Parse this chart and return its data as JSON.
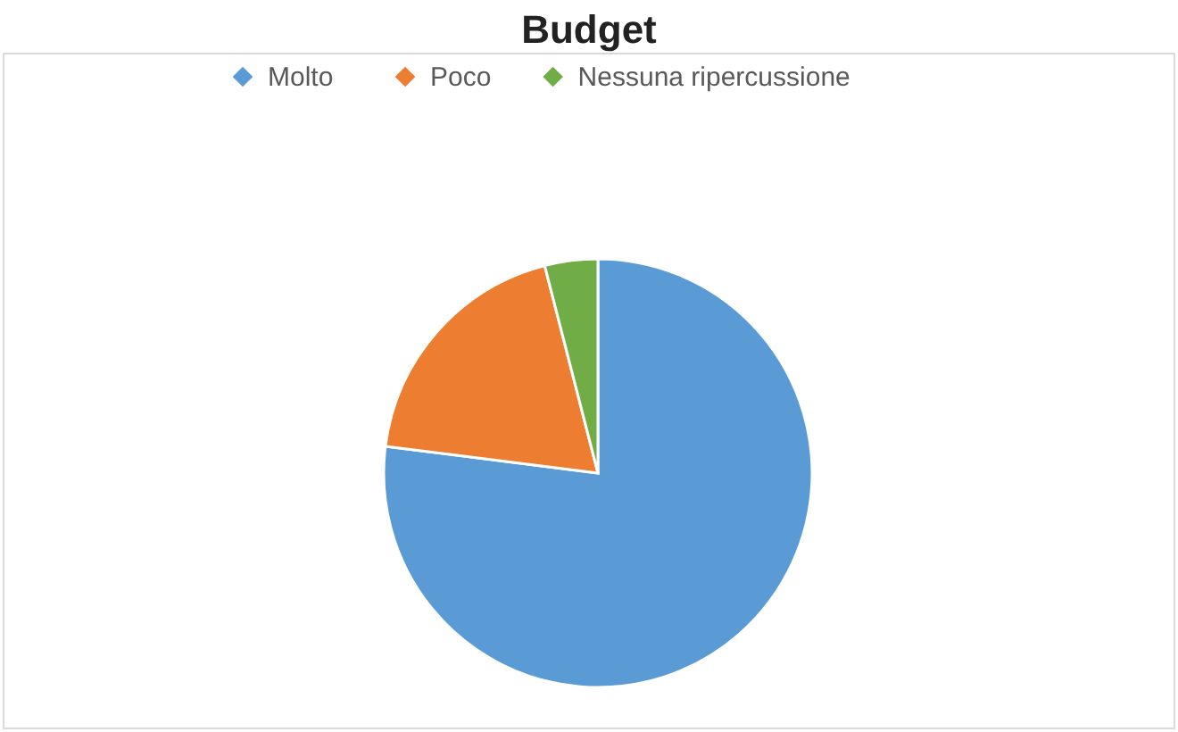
{
  "chart_data": {
    "type": "pie",
    "title": "Budget",
    "categories": [
      "Molto",
      "Poco",
      "Nessuna ripercussione"
    ],
    "values": [
      77,
      19,
      4
    ],
    "colors": [
      "#5b9bd5",
      "#ed7d31",
      "#70ad47"
    ],
    "legend": "top"
  }
}
